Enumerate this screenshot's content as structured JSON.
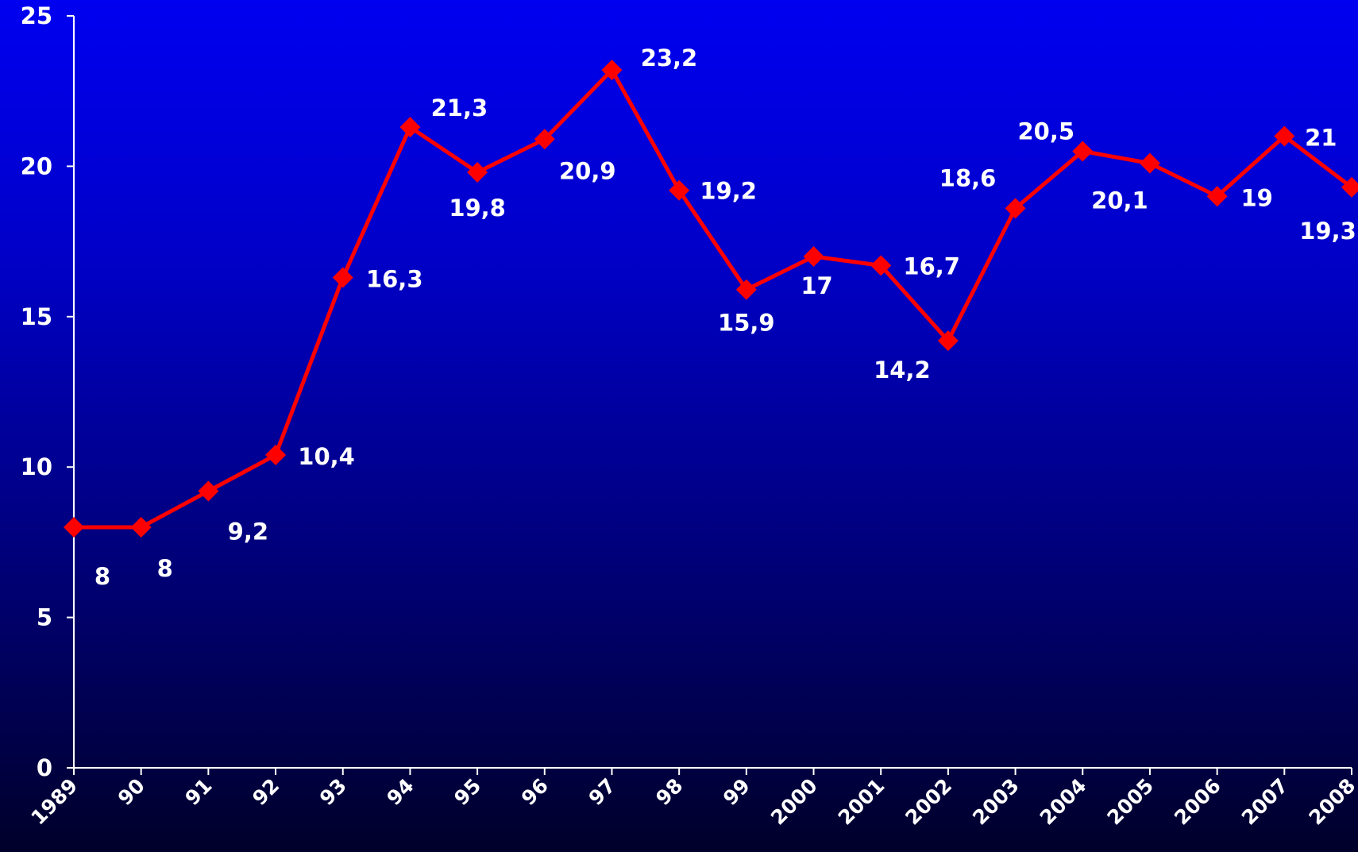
{
  "chart_data": {
    "type": "line",
    "title": "",
    "xlabel": "",
    "ylabel": "",
    "categories": [
      "1989",
      "90",
      "91",
      "92",
      "93",
      "94",
      "95",
      "96",
      "97",
      "98",
      "99",
      "2000",
      "2001",
      "2002",
      "2003",
      "2004",
      "2005",
      "2006",
      "2007",
      "2008"
    ],
    "series": [
      {
        "values": [
          8,
          8,
          9.2,
          10.4,
          16.3,
          21.3,
          19.8,
          20.9,
          23.2,
          19.2,
          15.9,
          17,
          16.7,
          14.2,
          18.6,
          20.5,
          20.1,
          19,
          21,
          19.3
        ],
        "labels": [
          "8",
          "8",
          "9,2",
          "10,4",
          "16,3",
          "21,3",
          "19,8",
          "20,9",
          "23,2",
          "19,2",
          "15,9",
          "17",
          "16,7",
          "14,2",
          "18,6",
          "20,5",
          "20,1",
          "19",
          "21",
          "19,3"
        ],
        "color": "#ff0000"
      }
    ],
    "ylim": [
      0,
      25
    ],
    "yticks": [
      0,
      5,
      10,
      15,
      20,
      25
    ],
    "ytick_labels": [
      "0",
      "5",
      "10",
      "15",
      "20",
      "25"
    ],
    "grid": false,
    "legend": "none",
    "colors": {
      "axis": "#ffffff",
      "text": "#ffffff",
      "line": "#ff0000",
      "background_top": "#0000f0",
      "background_bottom": "#00002a"
    }
  }
}
